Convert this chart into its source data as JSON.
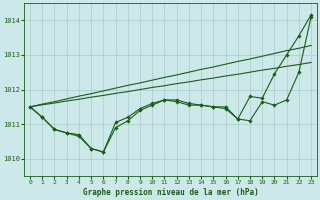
{
  "bg_color": "#cce8e8",
  "grid_color": "#aacccc",
  "line_color": "#1a5c1a",
  "ylim": [
    1009.5,
    1014.5
  ],
  "xlim": [
    -0.5,
    23.5
  ],
  "yticks": [
    1010,
    1011,
    1012,
    1013,
    1014
  ],
  "xticks": [
    0,
    1,
    2,
    3,
    4,
    5,
    6,
    7,
    8,
    9,
    10,
    11,
    12,
    13,
    14,
    15,
    16,
    17,
    18,
    19,
    20,
    21,
    22,
    23
  ],
  "xlabel": "Graphe pression niveau de la mer (hPa)",
  "series_with_markers": [
    [
      1011.5,
      1011.2,
      1010.85,
      1010.75,
      1010.65,
      1010.3,
      1010.2,
      1011.05,
      1011.2,
      1011.45,
      1011.6,
      1011.7,
      1011.65,
      1011.55,
      1011.55,
      1011.5,
      1011.45,
      1011.15,
      1011.1,
      1011.65,
      1011.55,
      1011.7,
      1012.5,
      1014.1
    ],
    [
      1011.5,
      1011.2,
      1010.85,
      1010.75,
      1010.7,
      1010.3,
      1010.2,
      1010.9,
      1011.1,
      1011.4,
      1011.55,
      1011.7,
      1011.7,
      1011.6,
      1011.55,
      1011.5,
      1011.5,
      1011.15,
      1011.8,
      1011.75,
      1012.45,
      1013.0,
      1013.55,
      1014.15
    ]
  ],
  "series_no_markers": [
    [
      1011.5,
      1011.56,
      1011.61,
      1011.67,
      1011.72,
      1011.78,
      1011.83,
      1011.89,
      1011.94,
      1012.0,
      1012.06,
      1012.11,
      1012.17,
      1012.22,
      1012.28,
      1012.33,
      1012.39,
      1012.44,
      1012.5,
      1012.56,
      1012.61,
      1012.67,
      1012.72,
      1012.78
    ],
    [
      1011.5,
      1011.58,
      1011.65,
      1011.73,
      1011.81,
      1011.88,
      1011.96,
      1012.04,
      1012.12,
      1012.19,
      1012.27,
      1012.35,
      1012.42,
      1012.5,
      1012.58,
      1012.65,
      1012.73,
      1012.81,
      1012.88,
      1012.96,
      1013.04,
      1013.12,
      1013.19,
      1013.27
    ]
  ]
}
